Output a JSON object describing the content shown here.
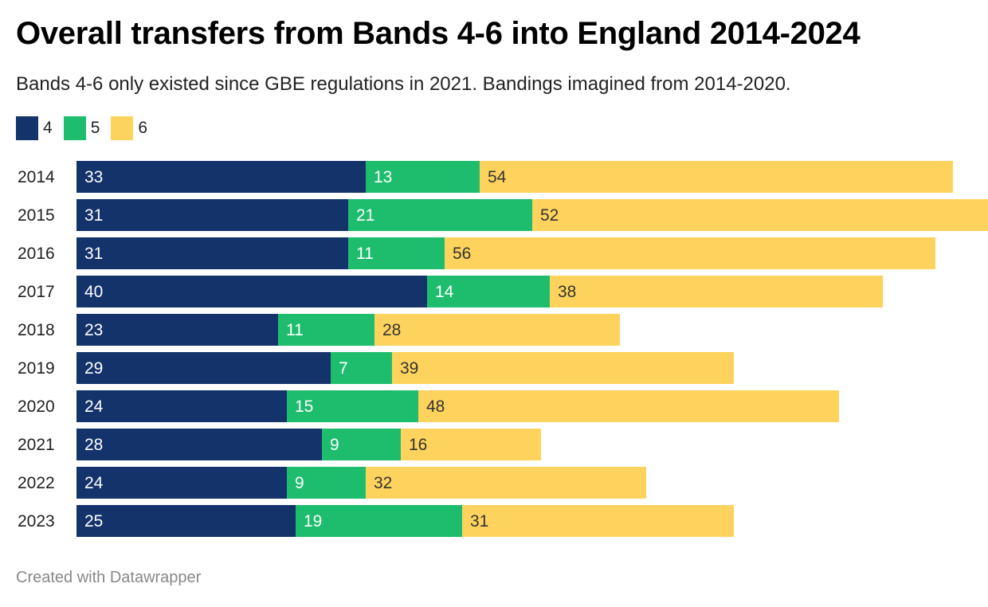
{
  "title": "Overall transfers from Bands 4-6 into England 2014-2024",
  "subtitle": "Bands 4-6 only existed since GBE regulations in 2021. Bandings imagined from 2014-2020.",
  "footer": "Created with Datawrapper",
  "legend": [
    {
      "label": "4",
      "color": "#14336a"
    },
    {
      "label": "5",
      "color": "#1dbd6d"
    },
    {
      "label": "6",
      "color": "#fed35d"
    }
  ],
  "chart_data": {
    "type": "bar",
    "orientation": "horizontal",
    "stacked": true,
    "categories": [
      "2014",
      "2015",
      "2016",
      "2017",
      "2018",
      "2019",
      "2020",
      "2021",
      "2022",
      "2023"
    ],
    "series": [
      {
        "name": "4",
        "color": "#14336a",
        "label_color": "#ffffff",
        "values": [
          33,
          31,
          31,
          40,
          23,
          29,
          24,
          28,
          24,
          25
        ]
      },
      {
        "name": "5",
        "color": "#1dbd6d",
        "label_color": "#ffffff",
        "values": [
          13,
          21,
          11,
          14,
          11,
          7,
          15,
          9,
          9,
          19
        ]
      },
      {
        "name": "6",
        "color": "#fed35d",
        "label_color": "#333333",
        "values": [
          54,
          52,
          56,
          38,
          28,
          39,
          48,
          16,
          32,
          31
        ]
      }
    ],
    "xlim": [
      0,
      104
    ],
    "legend_position": "top-left",
    "grid": false
  }
}
